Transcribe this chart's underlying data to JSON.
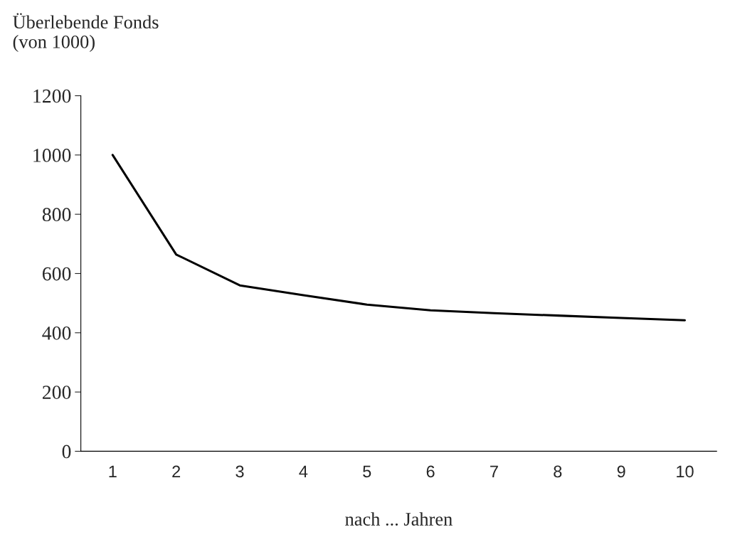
{
  "chart_data": {
    "type": "line",
    "ylabel": "Überlebende Fonds\n(von 1000)",
    "xlabel": "nach ... Jahren",
    "categories": [
      "1",
      "2",
      "3",
      "4",
      "5",
      "6",
      "7",
      "8",
      "9",
      "10"
    ],
    "series": [
      {
        "color": "#000000",
        "values": [
          1000,
          664,
          560,
          527,
          495,
          476,
          466,
          458,
          450,
          442
        ]
      }
    ],
    "ylim": [
      0,
      1200
    ],
    "yticks": [
      0,
      200,
      400,
      600,
      800,
      1000,
      1200
    ],
    "grid": false,
    "legend": false,
    "marker": "none",
    "line_style": "solid"
  }
}
